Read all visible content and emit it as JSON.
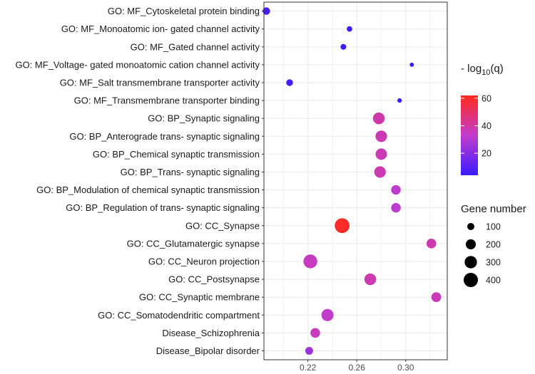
{
  "chart_data": {
    "type": "scatter",
    "title": "",
    "xlabel": "",
    "ylabel": "",
    "xlim": [
      0.184,
      0.334
    ],
    "x_ticks": [
      0.22,
      0.26,
      0.3
    ],
    "x_tick_labels": [
      "0.22",
      "0.26",
      "0.30"
    ],
    "points": [
      {
        "term": "GO: MF_Cytoskeletal protein binding",
        "ratio": 0.186,
        "neglog10q": 7,
        "genes": 110
      },
      {
        "term": "GO: MF_Monoatomic ion- gated channel activity",
        "ratio": 0.254,
        "neglog10q": 5,
        "genes": 60
      },
      {
        "term": "GO: MF_Gated channel activity",
        "ratio": 0.249,
        "neglog10q": 5,
        "genes": 65
      },
      {
        "term": "GO: MF_Voltage- gated monoatomic cation channel activity",
        "ratio": 0.305,
        "neglog10q": 4,
        "genes": 35
      },
      {
        "term": "GO: MF_Salt transmembrane transporter activity",
        "ratio": 0.205,
        "neglog10q": 6,
        "genes": 90
      },
      {
        "term": "GO: MF_Transmembrane transporter binding",
        "ratio": 0.295,
        "neglog10q": 4,
        "genes": 40
      },
      {
        "term": "GO: BP_Synaptic signaling",
        "ratio": 0.278,
        "neglog10q": 39,
        "genes": 270
      },
      {
        "term": "GO: BP_Anterograde trans- synaptic signaling",
        "ratio": 0.28,
        "neglog10q": 37,
        "genes": 260
      },
      {
        "term": "GO: BP_Chemical synaptic transmission",
        "ratio": 0.28,
        "neglog10q": 37,
        "genes": 255
      },
      {
        "term": "GO: BP_Trans- synaptic signaling",
        "ratio": 0.279,
        "neglog10q": 38,
        "genes": 260
      },
      {
        "term": "GO: BP_Modulation of chemical synaptic transmission",
        "ratio": 0.292,
        "neglog10q": 32,
        "genes": 180
      },
      {
        "term": "GO: BP_Regulation of trans- synaptic signaling",
        "ratio": 0.292,
        "neglog10q": 32,
        "genes": 180
      },
      {
        "term": "GO: CC_Synapse",
        "ratio": 0.248,
        "neglog10q": 60,
        "genes": 430
      },
      {
        "term": "GO: CC_Glutamatergic synapse",
        "ratio": 0.321,
        "neglog10q": 38,
        "genes": 185
      },
      {
        "term": "GO: CC_Neuron projection",
        "ratio": 0.222,
        "neglog10q": 35,
        "genes": 375
      },
      {
        "term": "GO: CC_Postsynapse",
        "ratio": 0.271,
        "neglog10q": 38,
        "genes": 270
      },
      {
        "term": "GO: CC_Synaptic membrane",
        "ratio": 0.325,
        "neglog10q": 36,
        "genes": 190
      },
      {
        "term": "GO: CC_Somatodendritic compartment",
        "ratio": 0.236,
        "neglog10q": 33,
        "genes": 290
      },
      {
        "term": "Disease_Schizophrenia",
        "ratio": 0.226,
        "neglog10q": 35,
        "genes": 185
      },
      {
        "term": "Disease_Bipolar disorder",
        "ratio": 0.221,
        "neglog10q": 25,
        "genes": 120
      }
    ],
    "color_legend": {
      "title_prefix": "- log",
      "title_sub": "10",
      "title_suffix": "(q)",
      "range": [
        4,
        62
      ],
      "ticks": [
        20,
        40,
        60
      ],
      "tick_labels": [
        "20",
        "40",
        "60"
      ],
      "low_color": "#3a1cff",
      "mid_color": "#c23ccc",
      "high_color": "#ff2a1e"
    },
    "size_legend": {
      "title": "Gene number",
      "values": [
        100,
        200,
        300,
        400
      ],
      "labels": [
        "100",
        "200",
        "300",
        "400"
      ],
      "point_color": "#000000"
    },
    "grid": true,
    "panel_background": "#ffffff",
    "grid_color": "#ebebeb"
  }
}
